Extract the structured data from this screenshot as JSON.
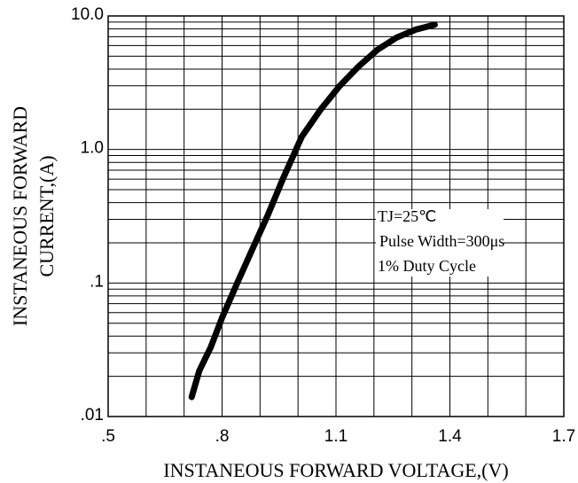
{
  "chart_data": {
    "type": "line",
    "title": "",
    "xlabel": "INSTANEOUS FORWARD VOLTAGE,(V)",
    "ylabel_line1": "INSTANEOUS FORWARD",
    "ylabel_line2": "CURRENT,(A)",
    "xlim": [
      0.5,
      1.7
    ],
    "ylim": [
      0.01,
      10
    ],
    "yscale": "log",
    "grid": true,
    "x_ticks": [
      {
        "value": 0.5,
        "label": ".5"
      },
      {
        "value": 0.8,
        "label": ".8"
      },
      {
        "value": 1.1,
        "label": "1.1"
      },
      {
        "value": 1.4,
        "label": "1.4"
      },
      {
        "value": 1.7,
        "label": "1.7"
      }
    ],
    "y_ticks": [
      {
        "value": 0.01,
        "label": ".01"
      },
      {
        "value": 0.1,
        "label": ".1"
      },
      {
        "value": 1,
        "label": "1.0"
      },
      {
        "value": 10,
        "label": "10.0"
      }
    ],
    "series": [
      {
        "x": [
          0.72,
          0.74,
          0.77,
          0.8,
          0.84,
          0.88,
          0.92,
          0.96,
          1.01,
          1.06,
          1.11,
          1.16,
          1.21,
          1.26,
          1.31,
          1.36
        ],
        "y": [
          0.014,
          0.022,
          0.033,
          0.055,
          0.1,
          0.18,
          0.32,
          0.6,
          1.25,
          2.0,
          3.0,
          4.2,
          5.6,
          6.9,
          7.9,
          8.6
        ]
      }
    ],
    "annotations": [
      "TJ=25℃",
      "Pulse Width=300μs",
      "1% Duty Cycle"
    ]
  }
}
